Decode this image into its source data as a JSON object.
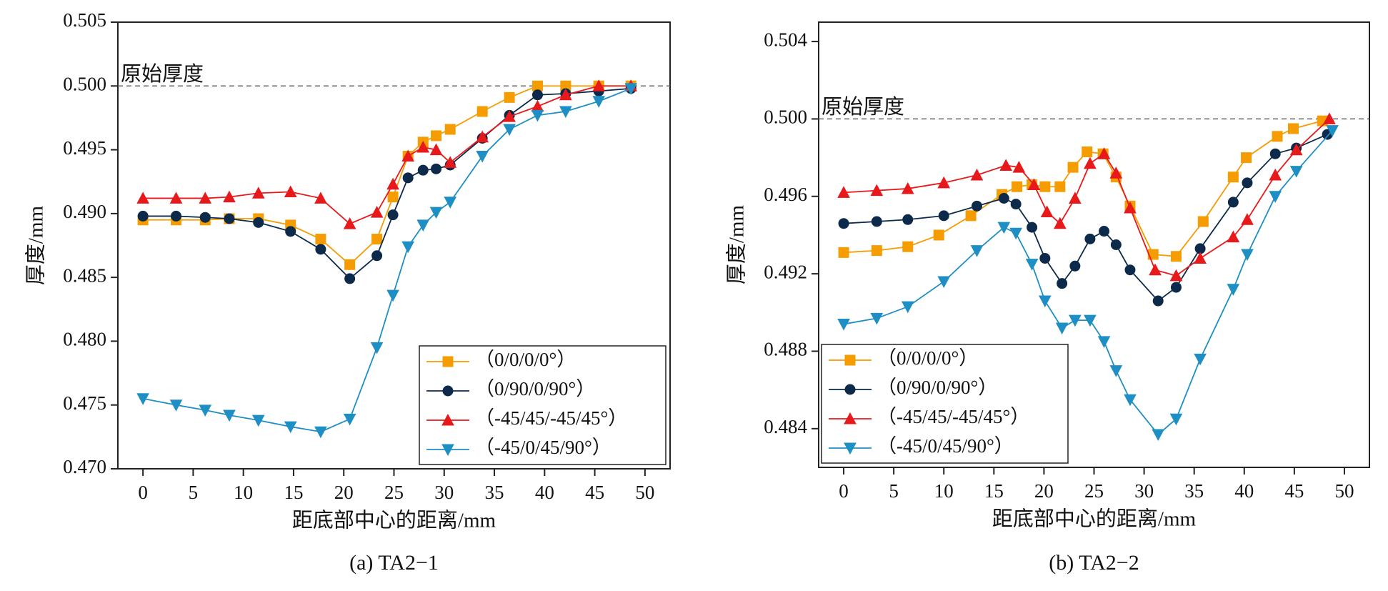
{
  "chart_data": [
    {
      "type": "line",
      "caption": "(a)  TA2−1",
      "xlabel": "距底部中心的距离/mm",
      "ylabel": "厚度/mm",
      "xlim": [
        -2.5,
        52.5
      ],
      "xticks": [
        0,
        5,
        10,
        15,
        20,
        25,
        30,
        35,
        40,
        45,
        50
      ],
      "ylim": [
        0.47,
        0.505
      ],
      "yticks": [
        {
          "value": 0.47,
          "label": "0.470"
        },
        {
          "value": 0.475,
          "label": "0.475"
        },
        {
          "value": 0.48,
          "label": "0.480"
        },
        {
          "value": 0.485,
          "label": "0.485"
        },
        {
          "value": 0.49,
          "label": "0.490"
        },
        {
          "value": 0.495,
          "label": "0.495"
        },
        {
          "value": 0.5,
          "label": "0.500"
        },
        {
          "value": 0.505,
          "label": "0.505"
        }
      ],
      "reference_line": 0.5,
      "annotation": "原始厚度",
      "legend": "lower right",
      "series": [
        {
          "name": "（0/0/0/0°）",
          "color": "#f59c00",
          "marker": "square",
          "x": [
            0,
            3.3,
            6.2,
            8.6,
            11.5,
            14.7,
            17.7,
            20.6,
            23.3,
            24.9,
            26.4,
            27.9,
            29.2,
            30.6,
            33.8,
            36.5,
            39.3,
            42.1,
            45.4,
            48.6
          ],
          "values": [
            0.4895,
            0.4895,
            0.4895,
            0.4896,
            0.4896,
            0.4891,
            0.488,
            0.486,
            0.488,
            0.4913,
            0.4945,
            0.4956,
            0.4961,
            0.4966,
            0.498,
            0.4991,
            0.5,
            0.5,
            0.5,
            0.5
          ]
        },
        {
          "name": "（0/90/0/90°）",
          "color": "#0d2a4a",
          "marker": "circle",
          "x": [
            0,
            3.3,
            6.2,
            8.6,
            11.5,
            14.7,
            17.7,
            20.6,
            23.3,
            24.9,
            26.4,
            27.9,
            29.2,
            30.6,
            33.8,
            36.5,
            39.3,
            42.1,
            45.4,
            48.6
          ],
          "values": [
            0.4898,
            0.4898,
            0.4897,
            0.4896,
            0.4893,
            0.4886,
            0.4872,
            0.4849,
            0.4867,
            0.4899,
            0.4928,
            0.4934,
            0.4935,
            0.4938,
            0.4959,
            0.4977,
            0.4993,
            0.4994,
            0.4996,
            0.4998
          ]
        },
        {
          "name": "（-45/45/-45/45°）",
          "color": "#e8191b",
          "marker": "triangle-up",
          "x": [
            0,
            3.3,
            6.2,
            8.6,
            11.5,
            14.7,
            17.7,
            20.6,
            23.3,
            24.9,
            26.4,
            27.9,
            29.2,
            30.6,
            33.8,
            36.5,
            39.3,
            42.1,
            45.4,
            48.6
          ],
          "values": [
            0.4912,
            0.4912,
            0.4912,
            0.4913,
            0.4916,
            0.4917,
            0.4912,
            0.4892,
            0.4901,
            0.4923,
            0.4945,
            0.4952,
            0.495,
            0.494,
            0.496,
            0.4976,
            0.4984,
            0.4993,
            0.5,
            0.5
          ]
        },
        {
          "name": "（-45/0/45/90°）",
          "color": "#1e8fc4",
          "marker": "triangle-down",
          "x": [
            0,
            3.3,
            6.2,
            8.6,
            11.5,
            14.7,
            17.7,
            20.6,
            23.3,
            24.9,
            26.4,
            27.9,
            29.2,
            30.6,
            33.8,
            36.5,
            39.3,
            42.1,
            45.4,
            48.6
          ],
          "values": [
            0.4755,
            0.475,
            0.4746,
            0.4742,
            0.4738,
            0.4733,
            0.4729,
            0.4739,
            0.4795,
            0.4836,
            0.4874,
            0.4891,
            0.4901,
            0.4909,
            0.4945,
            0.4966,
            0.4977,
            0.498,
            0.4988,
            0.4998
          ]
        }
      ]
    },
    {
      "type": "line",
      "caption": "(b)  TA2−2",
      "xlabel": "距底部中心的距离/mm",
      "ylabel": "厚度/mm",
      "xlim": [
        -2.5,
        52.5
      ],
      "xticks": [
        0,
        5,
        10,
        15,
        20,
        25,
        30,
        35,
        40,
        45,
        50
      ],
      "ylim": [
        0.482,
        0.505
      ],
      "yticks": [
        {
          "value": 0.484,
          "label": "0.484"
        },
        {
          "value": 0.488,
          "label": "0.488"
        },
        {
          "value": 0.492,
          "label": "0.492"
        },
        {
          "value": 0.496,
          "label": "0.496"
        },
        {
          "value": 0.5,
          "label": "0.500"
        },
        {
          "value": 0.504,
          "label": "0.504"
        }
      ],
      "reference_line": 0.5,
      "annotation": "原始厚度",
      "legend": "lower left",
      "series": [
        {
          "name": "（0/0/0/0°）",
          "color": "#f59c00",
          "marker": "square",
          "x": [
            0,
            3.3,
            6.4,
            9.5,
            12.7,
            15.8,
            17.3,
            18.8,
            20.1,
            21.6,
            22.9,
            24.3,
            25.9,
            27.2,
            28.6,
            30.9,
            33.2,
            35.9,
            38.9,
            40.2,
            43.3,
            44.9,
            47.8
          ],
          "values": [
            0.4931,
            0.4932,
            0.4934,
            0.494,
            0.495,
            0.4961,
            0.4965,
            0.4966,
            0.4965,
            0.4965,
            0.4975,
            0.4983,
            0.4982,
            0.497,
            0.4955,
            0.493,
            0.4929,
            0.4947,
            0.497,
            0.498,
            0.4991,
            0.4995,
            0.4999
          ]
        },
        {
          "name": "（0/90/0/90°）",
          "color": "#0d2a4a",
          "marker": "circle",
          "x": [
            0,
            3.3,
            6.4,
            10,
            13.3,
            16,
            17.2,
            18.8,
            20.1,
            21.8,
            23.1,
            24.6,
            26.0,
            27.2,
            28.6,
            31.4,
            33.2,
            35.6,
            38.9,
            40.3,
            43.1,
            45.2,
            48.3
          ],
          "values": [
            0.4946,
            0.4947,
            0.4948,
            0.495,
            0.4955,
            0.4959,
            0.4956,
            0.4944,
            0.4928,
            0.4915,
            0.4924,
            0.4938,
            0.4942,
            0.4935,
            0.4922,
            0.4906,
            0.4913,
            0.4933,
            0.4957,
            0.4967,
            0.4982,
            0.4985,
            0.4992
          ]
        },
        {
          "name": "（-45/45/-45/45°）",
          "color": "#e8191b",
          "marker": "triangle-up",
          "x": [
            0,
            3.3,
            6.4,
            10,
            13.3,
            16.2,
            17.5,
            19.0,
            20.3,
            21.6,
            23.1,
            24.6,
            26.0,
            27.2,
            28.6,
            31.1,
            33.2,
            35.6,
            38.9,
            40.3,
            43.1,
            45.2,
            48.5
          ],
          "values": [
            0.4962,
            0.4963,
            0.4964,
            0.4967,
            0.4971,
            0.4976,
            0.4975,
            0.4966,
            0.4952,
            0.4946,
            0.4959,
            0.4977,
            0.4982,
            0.4972,
            0.4954,
            0.4922,
            0.4919,
            0.4928,
            0.4939,
            0.4948,
            0.4971,
            0.4984,
            0.5
          ]
        },
        {
          "name": "（-45/0/45/90°）",
          "color": "#1e8fc4",
          "marker": "triangle-down",
          "x": [
            0,
            3.3,
            6.4,
            10,
            13.3,
            16,
            17.2,
            18.8,
            20.1,
            21.8,
            23.1,
            24.6,
            26.0,
            27.2,
            28.6,
            31.4,
            33.2,
            35.6,
            38.9,
            40.3,
            43.1,
            45.2,
            48.8
          ],
          "values": [
            0.4894,
            0.4897,
            0.4903,
            0.4916,
            0.4932,
            0.4944,
            0.4941,
            0.4925,
            0.4906,
            0.4892,
            0.4896,
            0.4896,
            0.4885,
            0.487,
            0.4855,
            0.4837,
            0.4845,
            0.4876,
            0.4912,
            0.493,
            0.496,
            0.4973,
            0.4994
          ]
        }
      ]
    }
  ]
}
